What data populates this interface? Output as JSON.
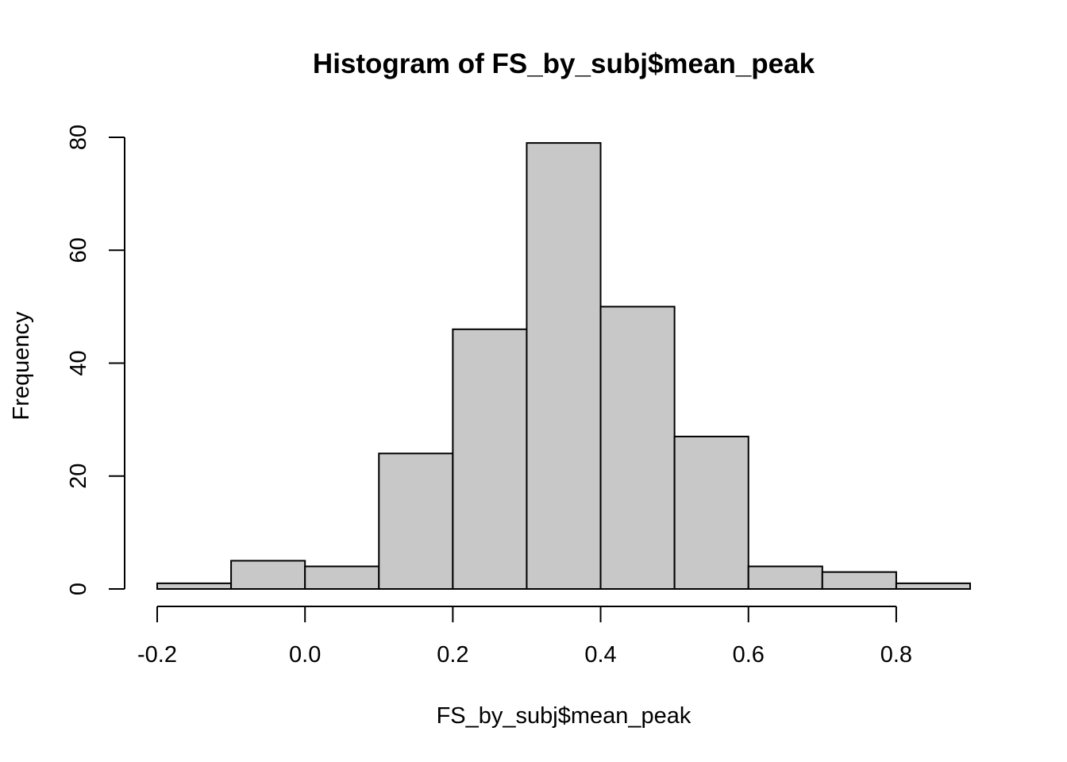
{
  "chart_data": {
    "type": "bar",
    "subtype": "histogram",
    "title": "Histogram of FS_by_subj$mean_peak",
    "xlabel": "FS_by_subj$mean_peak",
    "ylabel": "Frequency",
    "bin_edges": [
      -0.2,
      -0.1,
      0.0,
      0.1,
      0.2,
      0.3,
      0.4,
      0.5,
      0.6,
      0.7,
      0.8,
      0.9
    ],
    "values": [
      1,
      5,
      4,
      24,
      46,
      79,
      50,
      27,
      4,
      3,
      1
    ],
    "xlim": [
      -0.2,
      0.9
    ],
    "ylim": [
      0,
      80
    ],
    "x_ticks": [
      -0.2,
      0.0,
      0.2,
      0.4,
      0.6,
      0.8
    ],
    "x_tick_labels": [
      "-0.2",
      "0.0",
      "0.2",
      "0.4",
      "0.6",
      "0.8"
    ],
    "y_ticks": [
      0,
      20,
      40,
      60,
      80
    ],
    "y_tick_labels": [
      "0",
      "20",
      "40",
      "60",
      "80"
    ],
    "grid": false,
    "colors": {
      "bar_fill": "#c8c8c8",
      "bar_stroke": "#000000"
    }
  }
}
